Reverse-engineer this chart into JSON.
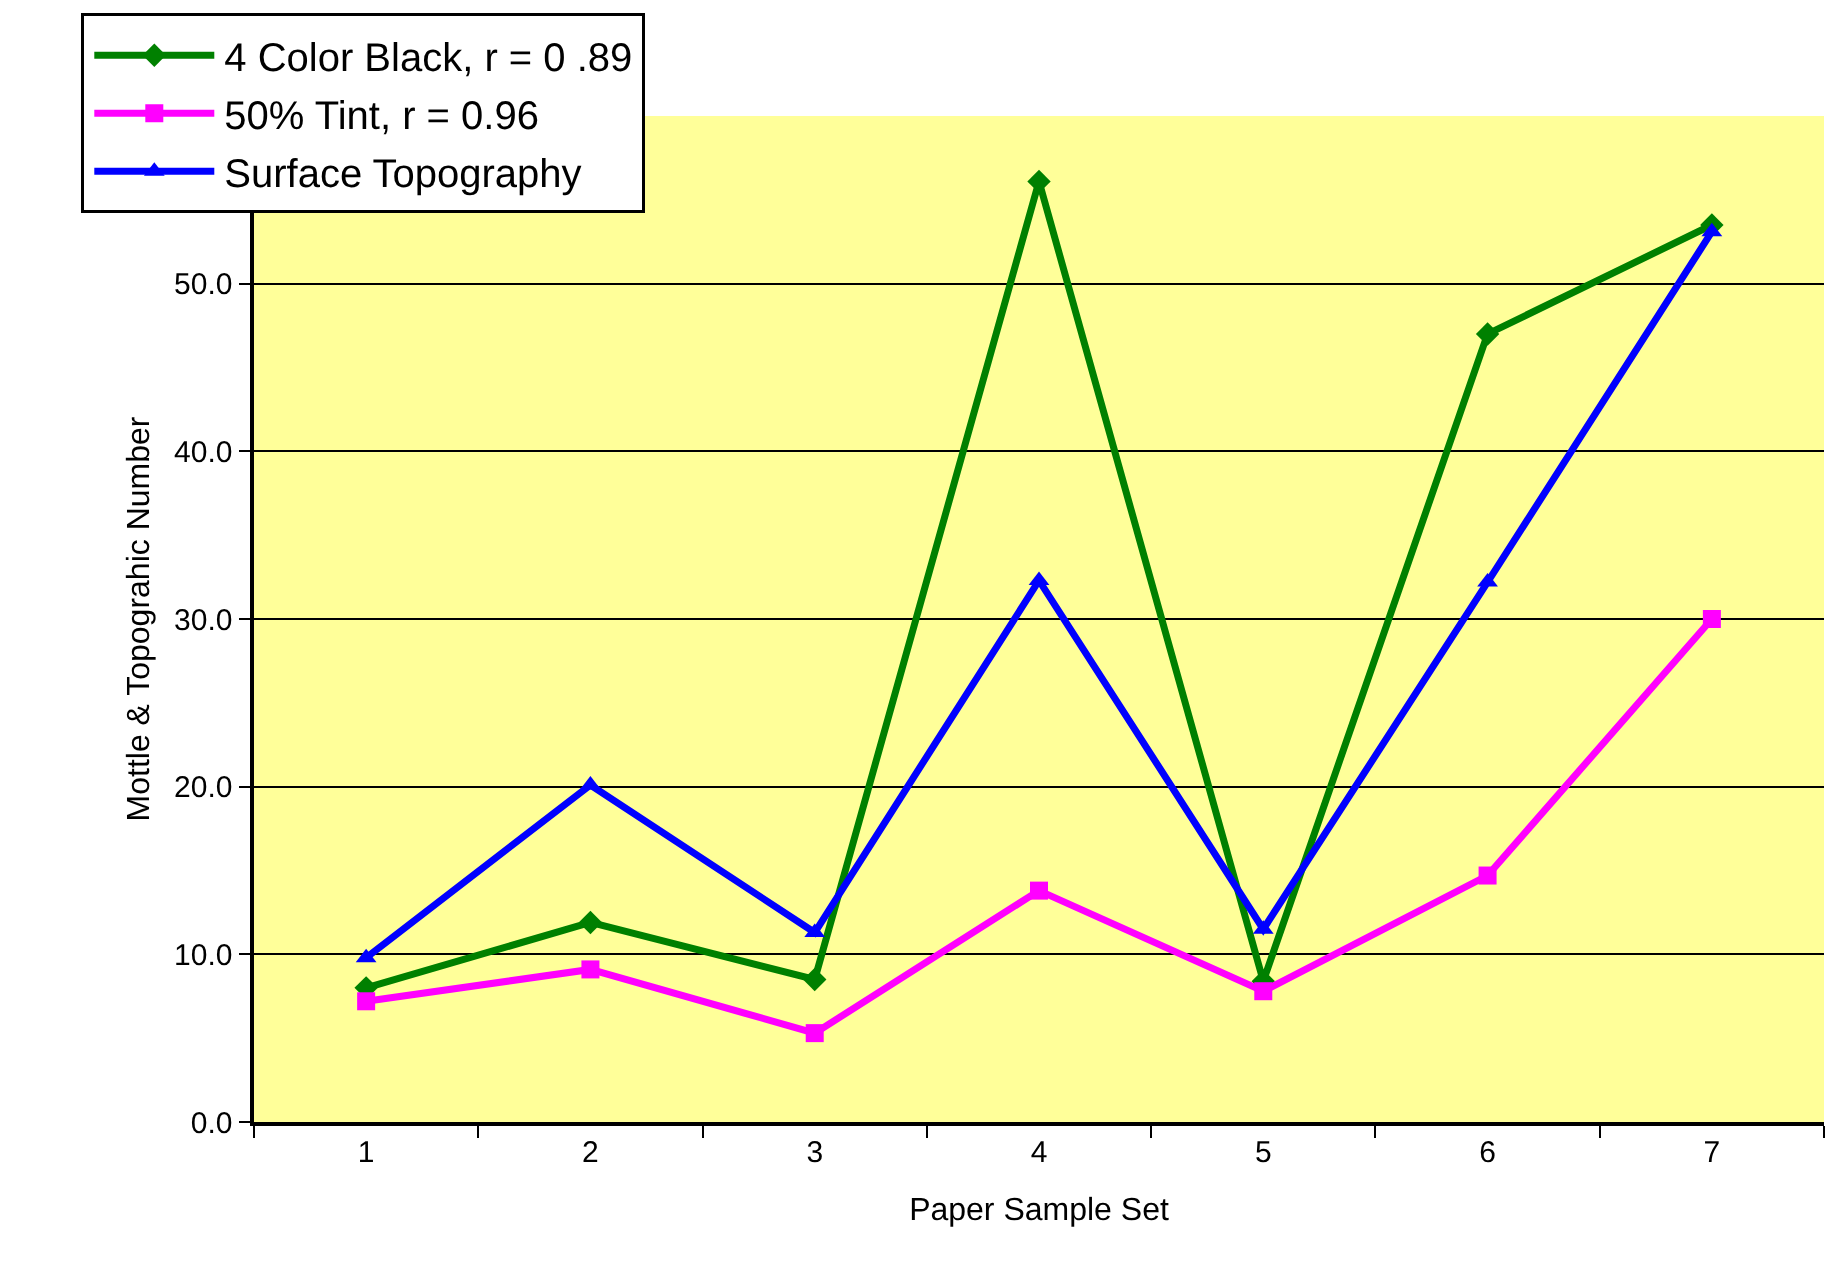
{
  "chart_data": {
    "type": "line",
    "xlabel": "Paper Sample Set",
    "ylabel": "Mottle & Topograhic Number",
    "categories": [
      "1",
      "2",
      "3",
      "4",
      "5",
      "6",
      "7"
    ],
    "series": [
      {
        "name": "4 Color Black, r = 0 .89",
        "color": "#008000",
        "marker": "diamond",
        "values": [
          8.0,
          11.9,
          8.5,
          56.1,
          8.4,
          47.0,
          53.5
        ]
      },
      {
        "name": "50% Tint, r = 0.96",
        "color": "#ff00ff",
        "marker": "square",
        "values": [
          7.2,
          9.1,
          5.3,
          13.8,
          7.8,
          14.7,
          30.0
        ]
      },
      {
        "name": "Surface Topography",
        "color": "#0000ff",
        "marker": "triangle",
        "values": [
          9.8,
          20.1,
          11.3,
          32.3,
          11.5,
          32.2,
          53.1
        ]
      }
    ],
    "ylim": [
      0,
      60
    ],
    "yticks": [
      {
        "value": 0,
        "label": "0.0"
      },
      {
        "value": 10,
        "label": "10.0"
      },
      {
        "value": 20,
        "label": "20.0"
      },
      {
        "value": 30,
        "label": "30.0"
      },
      {
        "value": 40,
        "label": "40.0"
      },
      {
        "value": 50,
        "label": "50.0"
      }
    ],
    "grid": "y",
    "legend": "top left",
    "line_style": "solid"
  }
}
